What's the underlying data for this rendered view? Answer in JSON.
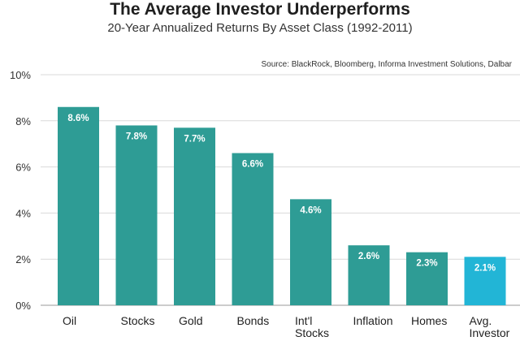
{
  "chart_data": {
    "type": "bar",
    "title": "The Average Investor Underperforms",
    "subtitle": "20-Year Annualized Returns By Asset Class (1992-2011)",
    "source": "Source: BlackRock, Bloomberg, Informa Investment Solutions, Dalbar",
    "categories": [
      [
        "Oil"
      ],
      [
        "Stocks"
      ],
      [
        "Gold"
      ],
      [
        "Bonds"
      ],
      [
        "Int'l",
        "Stocks"
      ],
      [
        "Inflation"
      ],
      [
        "Homes"
      ],
      [
        "Avg.",
        "Investor"
      ]
    ],
    "values": [
      8.6,
      7.8,
      7.7,
      6.6,
      4.6,
      2.6,
      2.3,
      2.1
    ],
    "data_labels": [
      "8.6%",
      "7.8%",
      "7.7%",
      "6.6%",
      "4.6%",
      "2.6%",
      "2.3%",
      "2.1%"
    ],
    "ylim": [
      0,
      10
    ],
    "yticks": [
      0,
      2,
      4,
      6,
      8,
      10
    ],
    "ytick_labels": [
      "0%",
      "2%",
      "4%",
      "6%",
      "8%",
      "10%"
    ],
    "grid": true,
    "colors": {
      "bar": "#2e9c95",
      "highlight": "#22b5d6",
      "highlight_index": 7
    }
  }
}
